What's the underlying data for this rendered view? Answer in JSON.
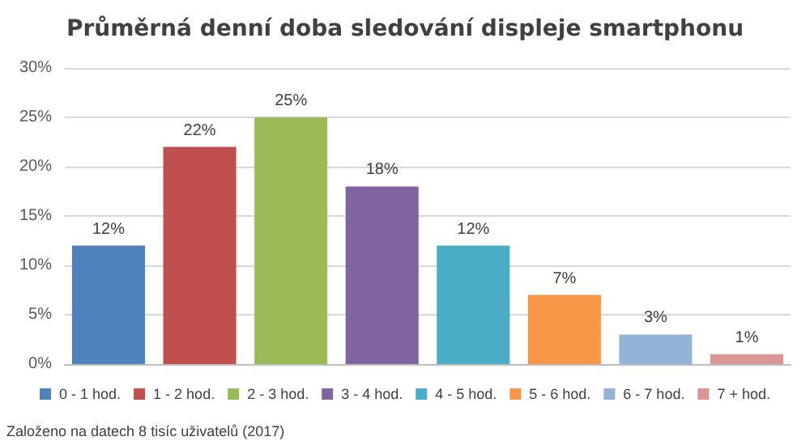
{
  "chart_data": {
    "type": "bar",
    "title": "Průměrná denní doba sledování displeje smartphonu",
    "categories": [
      null
    ],
    "series": [
      {
        "name": "0 - 1 hod.",
        "color": "#4f81bd",
        "values": [
          12
        ],
        "value_labels": [
          "12%"
        ]
      },
      {
        "name": "1 - 2 hod.",
        "color": "#c0504d",
        "values": [
          22
        ],
        "value_labels": [
          "22%"
        ]
      },
      {
        "name": "2 - 3 hod.",
        "color": "#9bbb59",
        "values": [
          25
        ],
        "value_labels": [
          "25%"
        ]
      },
      {
        "name": "3 - 4 hod.",
        "color": "#8064a2",
        "values": [
          18
        ],
        "value_labels": [
          "18%"
        ]
      },
      {
        "name": "4 - 5 hod.",
        "color": "#4bacc6",
        "values": [
          12
        ],
        "value_labels": [
          "12%"
        ]
      },
      {
        "name": "5 - 6 hod.",
        "color": "#f79646",
        "values": [
          7
        ],
        "value_labels": [
          "7%"
        ]
      },
      {
        "name": "6 - 7 hod.",
        "color": "#95b3d7",
        "values": [
          3
        ],
        "value_labels": [
          "3%"
        ]
      },
      {
        "name": "7 + hod.",
        "color": "#d99694",
        "values": [
          1
        ],
        "value_labels": [
          "1%"
        ]
      }
    ],
    "ylim": [
      0,
      30
    ],
    "yticks": [
      {
        "value": 0,
        "label": "0%"
      },
      {
        "value": 5,
        "label": "5%"
      },
      {
        "value": 10,
        "label": "10%"
      },
      {
        "value": 15,
        "label": "15%"
      },
      {
        "value": 20,
        "label": "20%"
      },
      {
        "value": 25,
        "label": "25%"
      },
      {
        "value": 30,
        "label": "30%"
      }
    ],
    "grid": "y",
    "legend": "bottom",
    "tick_labels": "y",
    "annotations": [
      "Založeno na datech 8 tisíc uživatelů (2017)"
    ]
  }
}
